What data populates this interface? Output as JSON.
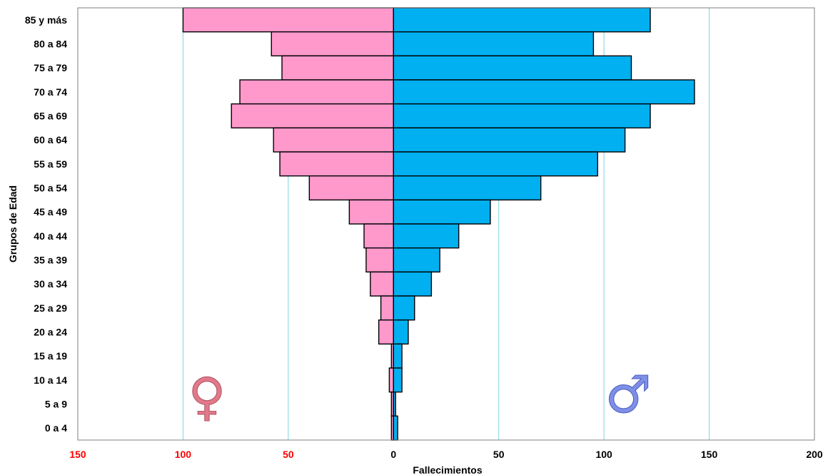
{
  "chart_data": {
    "type": "bar",
    "orientation": "horizontal",
    "layout": "population-pyramid",
    "xlabel": "Fallecimientos",
    "ylabel": "Grupos de Edad",
    "xlim": [
      -150,
      200
    ],
    "x_ticks": [
      {
        "value": -150,
        "label": "150",
        "color": "#ff0000"
      },
      {
        "value": -100,
        "label": "100",
        "color": "#ff0000"
      },
      {
        "value": -50,
        "label": "50",
        "color": "#ff0000"
      },
      {
        "value": 0,
        "label": "0",
        "color": "#000000"
      },
      {
        "value": 50,
        "label": "50",
        "color": "#000000"
      },
      {
        "value": 100,
        "label": "100",
        "color": "#000000"
      },
      {
        "value": 150,
        "label": "150",
        "color": "#000000"
      },
      {
        "value": 200,
        "label": "200",
        "color": "#000000"
      }
    ],
    "grid": "vertical",
    "grid_color": "#7fd3e0",
    "categories": [
      "85 y más",
      "80 a 84",
      "75 a 79",
      "70 a 74",
      "65 a 69",
      "60 a 64",
      "55 a 59",
      "50 a 54",
      "45 a 49",
      "40 a 44",
      "35 a 39",
      "30 a 34",
      "25 a 29",
      "20 a 24",
      "15 a 19",
      "10 a 14",
      "5 a 9",
      "0 a 4"
    ],
    "series": [
      {
        "symbol": "female",
        "direction": "left",
        "color": "#ff99cc",
        "values": [
          100,
          58,
          53,
          73,
          77,
          57,
          54,
          40,
          21,
          14,
          13,
          11,
          6,
          7,
          1,
          2,
          1,
          1
        ]
      },
      {
        "symbol": "male",
        "direction": "right",
        "color": "#00b0f0",
        "values": [
          122,
          95,
          113,
          143,
          122,
          110,
          97,
          70,
          46,
          31,
          22,
          18,
          10,
          7,
          4,
          4,
          1,
          2
        ]
      }
    ],
    "symbols": {
      "female": {
        "glyph": "♀",
        "color": "#e07a8a"
      },
      "male": {
        "glyph": "♂",
        "color": "#7e8fe6"
      }
    }
  }
}
